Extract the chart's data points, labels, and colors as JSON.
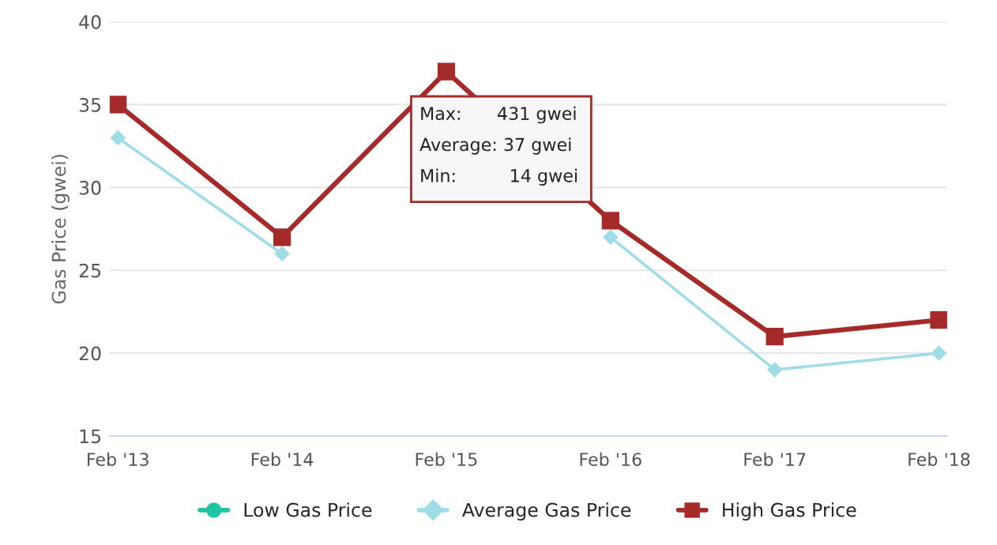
{
  "chart_data": {
    "type": "line",
    "ylabel": "Gas Price (gwei)",
    "categories": [
      "Feb '13",
      "Feb '14",
      "Feb '15",
      "Feb '16",
      "Feb '17",
      "Feb '18"
    ],
    "series": [
      {
        "name": "Low Gas Price",
        "color": "#1fc4a0",
        "marker": "circle",
        "values": [
          null,
          null,
          null,
          null,
          null,
          null
        ]
      },
      {
        "name": "Average Gas Price",
        "color": "#9fdde6",
        "marker": "diamond",
        "values": [
          33,
          26,
          null,
          27,
          19,
          20
        ]
      },
      {
        "name": "High Gas Price",
        "color": "#a52a2a",
        "marker": "square",
        "values": [
          35,
          27,
          37,
          28,
          21,
          22
        ]
      }
    ],
    "ylim": [
      15,
      40
    ],
    "yticks": [
      15,
      20,
      25,
      30,
      35,
      40
    ],
    "grid": "y",
    "legend": "bottom",
    "annotations": [
      "Max:  431 gwei",
      "Average: 37 gwei",
      "Min:   14 gwei"
    ]
  }
}
